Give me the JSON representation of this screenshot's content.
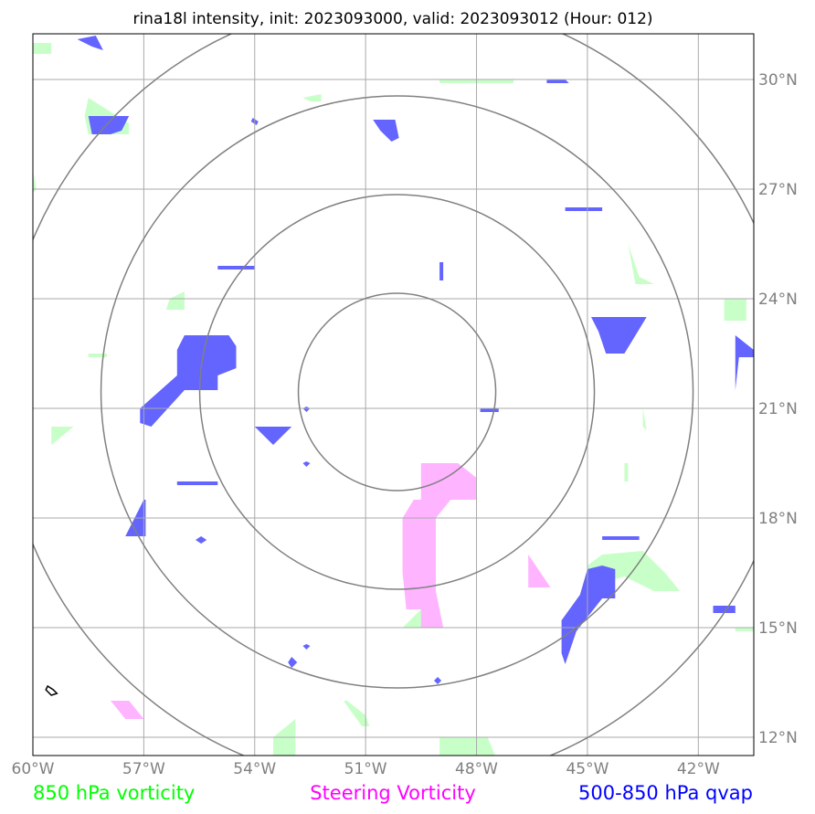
{
  "chart_data": {
    "type": "map",
    "title": "rina18l intensity, init: 2023093000, valid: 2023093012 (Hour: 012)",
    "lon_range": [
      -60,
      -40.5
    ],
    "lat_range": [
      11.5,
      31.25
    ],
    "lon_ticks": [
      {
        "value": -60,
        "label": "60°W"
      },
      {
        "value": -57,
        "label": "57°W"
      },
      {
        "value": -54,
        "label": "54°W"
      },
      {
        "value": -51,
        "label": "51°W"
      },
      {
        "value": -48,
        "label": "48°W"
      },
      {
        "value": -45,
        "label": "45°W"
      },
      {
        "value": -42,
        "label": "42°W"
      }
    ],
    "lat_ticks": [
      {
        "value": 12,
        "label": "12°N"
      },
      {
        "value": 15,
        "label": "15°N"
      },
      {
        "value": 18,
        "label": "18°N"
      },
      {
        "value": 21,
        "label": "21°N"
      },
      {
        "value": 24,
        "label": "24°N"
      },
      {
        "value": 27,
        "label": "27°N"
      },
      {
        "value": 30,
        "label": "30°N"
      }
    ],
    "grid": true,
    "range_rings": {
      "center": {
        "lon": -50.15,
        "lat": 21.45
      },
      "radii_deg_lat": [
        2.7,
        5.4,
        8.1,
        10.8
      ]
    },
    "legend": {
      "placement": "bottom",
      "entries": [
        {
          "label": "850 hPa vorticity",
          "color": "#00ff00"
        },
        {
          "label": "Steering Vorticity",
          "color": "#ff00ff"
        },
        {
          "label": "500-850 hPa qvap",
          "color": "#0000ff"
        }
      ]
    },
    "fill_colors": {
      "vort850": "#c8ffc8",
      "steering": "#ffb4ff",
      "qvap": "#6464ff"
    },
    "regions": {
      "qvap": [
        [
          [
            -58.8,
            31.1
          ],
          [
            -58.3,
            31.2
          ],
          [
            -58.1,
            30.8
          ],
          [
            -58.4,
            30.9
          ]
        ],
        [
          [
            -58.5,
            29.0
          ],
          [
            -57.4,
            29.0
          ],
          [
            -57.6,
            28.6
          ],
          [
            -57.9,
            28.5
          ],
          [
            -58.4,
            28.5
          ]
        ],
        [
          [
            -50.8,
            28.9
          ],
          [
            -50.2,
            28.9
          ],
          [
            -50.1,
            28.4
          ],
          [
            -50.3,
            28.3
          ],
          [
            -50.6,
            28.6
          ]
        ],
        [
          [
            -54.05,
            28.95
          ],
          [
            -53.9,
            28.85
          ],
          [
            -53.95,
            28.75
          ],
          [
            -54.1,
            28.85
          ]
        ],
        [
          [
            -46.1,
            30.0
          ],
          [
            -45.6,
            30.0
          ],
          [
            -45.5,
            29.9
          ],
          [
            -46.1,
            29.9
          ]
        ],
        [
          [
            -45.6,
            26.5
          ],
          [
            -44.6,
            26.5
          ],
          [
            -44.6,
            26.4
          ],
          [
            -45.6,
            26.4
          ]
        ],
        [
          [
            -55.0,
            24.9
          ],
          [
            -54.0,
            24.9
          ],
          [
            -54.0,
            24.8
          ],
          [
            -55.0,
            24.8
          ]
        ],
        [
          [
            -49.0,
            25.0
          ],
          [
            -48.9,
            25.0
          ],
          [
            -48.9,
            24.5
          ],
          [
            -49.0,
            24.5
          ]
        ],
        [
          [
            -44.9,
            23.5
          ],
          [
            -43.4,
            23.5
          ],
          [
            -44.0,
            22.5
          ],
          [
            -44.5,
            22.5
          ],
          [
            -44.7,
            23.1
          ]
        ],
        [
          [
            -41.0,
            23.0
          ],
          [
            -40.5,
            22.6
          ],
          [
            -40.5,
            22.4
          ],
          [
            -40.9,
            22.4
          ],
          [
            -41.0,
            21.5
          ]
        ],
        [
          [
            -55.9,
            23.0
          ],
          [
            -54.7,
            23.0
          ],
          [
            -54.5,
            22.7
          ],
          [
            -54.5,
            22.1
          ],
          [
            -55.0,
            21.9
          ],
          [
            -55.0,
            21.5
          ],
          [
            -55.9,
            21.5
          ],
          [
            -56.8,
            20.5
          ],
          [
            -57.1,
            20.6
          ],
          [
            -57.1,
            21.0
          ],
          [
            -56.1,
            21.9
          ],
          [
            -56.1,
            22.6
          ]
        ],
        [
          [
            -47.9,
            21.0
          ],
          [
            -47.4,
            21.0
          ],
          [
            -47.4,
            20.9
          ],
          [
            -47.9,
            20.9
          ]
        ],
        [
          [
            -54.0,
            20.5
          ],
          [
            -53.0,
            20.5
          ],
          [
            -53.5,
            20.0
          ]
        ],
        [
          [
            -52.6,
            21.05
          ],
          [
            -52.5,
            21.0
          ],
          [
            -52.6,
            20.9
          ],
          [
            -52.7,
            21.0
          ]
        ],
        [
          [
            -52.6,
            19.55
          ],
          [
            -52.5,
            19.5
          ],
          [
            -52.6,
            19.4
          ],
          [
            -52.7,
            19.5
          ]
        ],
        [
          [
            -56.1,
            19.0
          ],
          [
            -55.0,
            19.0
          ],
          [
            -55.0,
            18.9
          ],
          [
            -56.1,
            18.9
          ]
        ],
        [
          [
            -57.0,
            18.5
          ],
          [
            -56.95,
            18.5
          ],
          [
            -56.95,
            17.5
          ],
          [
            -57.5,
            17.5
          ]
        ],
        [
          [
            -55.45,
            17.5
          ],
          [
            -55.3,
            17.4
          ],
          [
            -55.45,
            17.3
          ],
          [
            -55.6,
            17.4
          ]
        ],
        [
          [
            -44.6,
            17.5
          ],
          [
            -43.6,
            17.5
          ],
          [
            -43.6,
            17.4
          ],
          [
            -44.6,
            17.4
          ]
        ],
        [
          [
            -44.6,
            16.7
          ],
          [
            -44.25,
            16.6
          ],
          [
            -44.25,
            15.8
          ],
          [
            -44.6,
            15.8
          ],
          [
            -45.3,
            14.9
          ],
          [
            -45.6,
            14.0
          ],
          [
            -45.7,
            14.3
          ],
          [
            -45.7,
            15.2
          ],
          [
            -45.2,
            15.9
          ],
          [
            -45.0,
            16.6
          ]
        ],
        [
          [
            -41.6,
            15.6
          ],
          [
            -41.0,
            15.6
          ],
          [
            -41.0,
            15.4
          ],
          [
            -41.6,
            15.4
          ]
        ],
        [
          [
            -52.6,
            14.55
          ],
          [
            -52.5,
            14.5
          ],
          [
            -52.6,
            14.4
          ],
          [
            -52.7,
            14.5
          ]
        ],
        [
          [
            -53.0,
            14.2
          ],
          [
            -52.85,
            14.05
          ],
          [
            -53.0,
            13.9
          ],
          [
            -53.1,
            14.05
          ]
        ],
        [
          [
            -49.05,
            13.65
          ],
          [
            -48.95,
            13.55
          ],
          [
            -49.05,
            13.45
          ],
          [
            -49.15,
            13.55
          ]
        ]
      ],
      "steering": [
        [
          [
            -49.5,
            19.5
          ],
          [
            -48.5,
            19.5
          ],
          [
            -48.0,
            19.1
          ],
          [
            -48.0,
            18.5
          ],
          [
            -48.7,
            18.5
          ],
          [
            -49.1,
            18.0
          ],
          [
            -49.1,
            16.0
          ],
          [
            -48.9,
            15.0
          ],
          [
            -49.5,
            15.0
          ],
          [
            -49.5,
            15.5
          ],
          [
            -49.9,
            15.5
          ],
          [
            -50.0,
            16.5
          ],
          [
            -50.0,
            18.0
          ],
          [
            -49.7,
            18.5
          ],
          [
            -49.5,
            18.5
          ]
        ],
        [
          [
            -46.6,
            17.1
          ],
          [
            -46.6,
            17.0
          ],
          [
            -46.0,
            16.1
          ],
          [
            -46.6,
            16.1
          ],
          [
            -46.6,
            16.7
          ]
        ],
        [
          [
            -57.9,
            13.0
          ],
          [
            -57.4,
            13.0
          ],
          [
            -57.0,
            12.5
          ],
          [
            -57.5,
            12.5
          ]
        ]
      ],
      "vort850": [
        [
          [
            -60.0,
            31.0
          ],
          [
            -59.5,
            31.0
          ],
          [
            -59.5,
            30.7
          ],
          [
            -60.0,
            30.7
          ]
        ],
        [
          [
            -58.5,
            29.5
          ],
          [
            -57.4,
            28.8
          ],
          [
            -57.4,
            28.5
          ],
          [
            -58.5,
            28.5
          ],
          [
            -58.6,
            29.0
          ]
        ],
        [
          [
            -60.0,
            27.5
          ],
          [
            -59.9,
            27.0
          ],
          [
            -60.0,
            26.9
          ]
        ],
        [
          [
            -52.7,
            29.5
          ],
          [
            -52.2,
            29.6
          ],
          [
            -52.2,
            29.4
          ],
          [
            -52.5,
            29.4
          ]
        ],
        [
          [
            -49.0,
            30.0
          ],
          [
            -47.0,
            30.0
          ],
          [
            -47.0,
            29.9
          ],
          [
            -49.0,
            29.9
          ]
        ],
        [
          [
            -43.9,
            25.5
          ],
          [
            -43.6,
            24.6
          ],
          [
            -43.2,
            24.4
          ],
          [
            -43.7,
            24.4
          ]
        ],
        [
          [
            -56.3,
            24.0
          ],
          [
            -55.9,
            24.2
          ],
          [
            -55.9,
            23.7
          ],
          [
            -56.4,
            23.7
          ]
        ],
        [
          [
            -58.5,
            22.5
          ],
          [
            -58.0,
            22.5
          ],
          [
            -58.0,
            22.4
          ],
          [
            -58.5,
            22.4
          ]
        ],
        [
          [
            -41.3,
            24.0
          ],
          [
            -40.7,
            24.0
          ],
          [
            -40.7,
            23.4
          ],
          [
            -41.3,
            23.4
          ]
        ],
        [
          [
            -59.5,
            20.5
          ],
          [
            -58.9,
            20.5
          ],
          [
            -59.5,
            20.0
          ]
        ],
        [
          [
            -43.5,
            21.0
          ],
          [
            -43.4,
            20.4
          ],
          [
            -43.5,
            20.5
          ]
        ],
        [
          [
            -44.0,
            19.5
          ],
          [
            -43.9,
            19.5
          ],
          [
            -43.9,
            19.0
          ],
          [
            -44.0,
            19.0
          ]
        ],
        [
          [
            -44.6,
            17.0
          ],
          [
            -43.5,
            17.1
          ],
          [
            -42.9,
            16.5
          ],
          [
            -42.5,
            16.0
          ],
          [
            -43.2,
            16.0
          ],
          [
            -44.0,
            16.4
          ],
          [
            -45.0,
            16.1
          ],
          [
            -45.0,
            16.7
          ]
        ],
        [
          [
            -49.5,
            15.5
          ],
          [
            -49.4,
            15.5
          ],
          [
            -49.4,
            15.0
          ],
          [
            -50.0,
            15.0
          ]
        ],
        [
          [
            -41.0,
            15.0
          ],
          [
            -40.5,
            15.0
          ],
          [
            -40.5,
            14.9
          ],
          [
            -41.0,
            14.9
          ]
        ],
        [
          [
            -51.6,
            13.0
          ],
          [
            -51.1,
            12.3
          ],
          [
            -50.9,
            12.3
          ],
          [
            -51.0,
            12.6
          ],
          [
            -51.5,
            13.0
          ]
        ],
        [
          [
            -53.5,
            12.0
          ],
          [
            -52.9,
            12.5
          ],
          [
            -52.9,
            11.5
          ],
          [
            -53.5,
            11.5
          ]
        ],
        [
          [
            -49.0,
            12.0
          ],
          [
            -47.7,
            12.0
          ],
          [
            -47.5,
            11.5
          ],
          [
            -49.0,
            11.5
          ]
        ]
      ],
      "black": [
        [
          [
            -59.6,
            13.4
          ],
          [
            -59.45,
            13.3
          ],
          [
            -59.35,
            13.2
          ],
          [
            -59.5,
            13.15
          ],
          [
            -59.65,
            13.3
          ]
        ]
      ]
    }
  }
}
